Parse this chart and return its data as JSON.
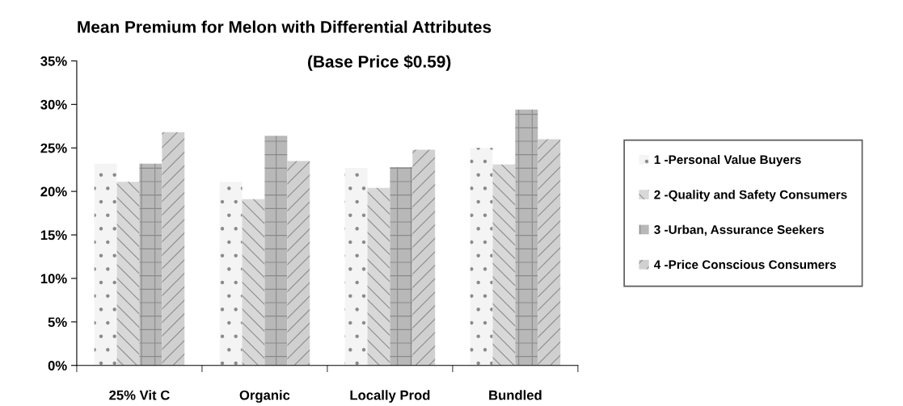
{
  "chart_data": {
    "type": "bar",
    "title": "Mean Premium for Melon with Differential Attributes",
    "subtitle": "(Base Price $0.59)",
    "categories": [
      "25% Vit C",
      "Organic",
      "Locally Prod",
      "Bundled"
    ],
    "series": [
      {
        "name": "1 -Personal Value Buyers",
        "color": "#f4f4f4",
        "values": [
          23.2,
          21.1,
          22.7,
          25.0
        ]
      },
      {
        "name": "2 -Quality and Safety Consumers",
        "color": "#d8d8d8",
        "values": [
          21.1,
          19.1,
          20.4,
          23.1
        ]
      },
      {
        "name": "3 -Urban, Assurance Seekers",
        "color": "#b8b8b8",
        "values": [
          23.2,
          26.4,
          22.8,
          29.4
        ]
      },
      {
        "name": "4 -Price Conscious Consumers",
        "color": "#d0d0d0",
        "values": [
          26.8,
          23.5,
          24.8,
          26.0
        ]
      }
    ],
    "ylim": [
      0,
      35
    ],
    "yticks": [
      {
        "value": 0,
        "label": "0%"
      },
      {
        "value": 5,
        "label": "5%"
      },
      {
        "value": 10,
        "label": "10%"
      },
      {
        "value": 15,
        "label": "15%"
      },
      {
        "value": 20,
        "label": "20%"
      },
      {
        "value": 25,
        "label": "25%"
      },
      {
        "value": 30,
        "label": "30%"
      },
      {
        "value": 35,
        "label": "35%"
      }
    ],
    "grid": false,
    "legend": "right"
  }
}
